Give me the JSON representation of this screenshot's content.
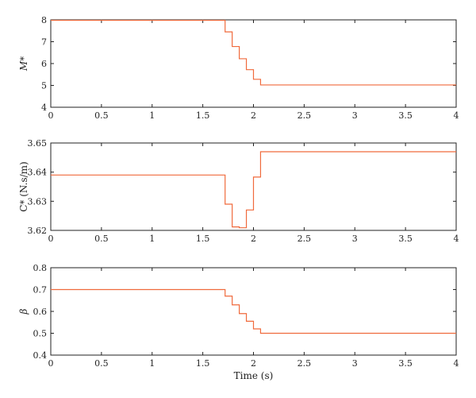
{
  "chart_data": [
    {
      "type": "line",
      "ylabel": "M*",
      "xlabel": "",
      "xlim": [
        0,
        4
      ],
      "ylim": [
        4,
        8
      ],
      "xticks": [
        "0",
        "0.5",
        "1",
        "1.5",
        "2",
        "2.5",
        "3",
        "3.5",
        "4"
      ],
      "yticks": [
        "4",
        "5",
        "6",
        "7",
        "8"
      ],
      "step": true,
      "series": [
        {
          "color": "#f06a3c",
          "x": [
            0,
            1.72,
            1.79,
            1.86,
            1.93,
            2.0,
            2.07,
            2.14,
            4
          ],
          "y": [
            7.98,
            7.45,
            6.78,
            6.22,
            5.72,
            5.28,
            5.02,
            5.02,
            5.02
          ]
        }
      ]
    },
    {
      "type": "line",
      "ylabel": "C* (N.s/m)",
      "xlabel": "",
      "xlim": [
        0,
        4
      ],
      "ylim": [
        3.62,
        3.65
      ],
      "xticks": [
        "0",
        "0.5",
        "1",
        "1.5",
        "2",
        "2.5",
        "3",
        "3.5",
        "4"
      ],
      "yticks": [
        "3.62",
        "3.63",
        "3.64",
        "3.65"
      ],
      "step": true,
      "series": [
        {
          "color": "#f06a3c",
          "x": [
            0,
            1.72,
            1.79,
            1.86,
            1.93,
            2.0,
            2.07,
            2.14,
            4
          ],
          "y": [
            3.639,
            3.629,
            3.6212,
            3.6209,
            3.627,
            3.6383,
            3.647,
            3.647,
            3.647
          ]
        }
      ]
    },
    {
      "type": "line",
      "ylabel": "β",
      "xlabel": "Time (s)",
      "xlim": [
        0,
        4
      ],
      "ylim": [
        0.4,
        0.8
      ],
      "xticks": [
        "0",
        "0.5",
        "1",
        "1.5",
        "2",
        "2.5",
        "3",
        "3.5",
        "4"
      ],
      "yticks": [
        "0.4",
        "0.5",
        "0.6",
        "0.7",
        "0.8"
      ],
      "step": true,
      "series": [
        {
          "color": "#f06a3c",
          "x": [
            0,
            1.72,
            1.79,
            1.86,
            1.93,
            2.0,
            2.07,
            2.14,
            4
          ],
          "y": [
            0.7,
            0.67,
            0.63,
            0.59,
            0.555,
            0.52,
            0.5,
            0.5,
            0.5
          ]
        }
      ]
    }
  ]
}
